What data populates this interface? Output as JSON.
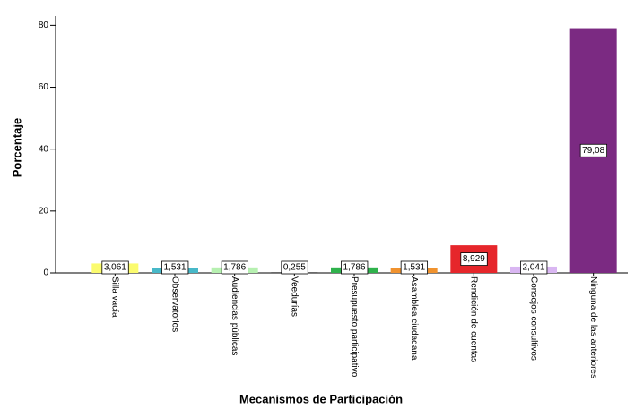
{
  "chart_data": {
    "type": "bar",
    "x_label": "Mecanismos de Participación",
    "y_label": "Porcentaje",
    "categories": [
      "Silla vacía",
      "Observatorios",
      "Audiencias públicas",
      "Veedurías",
      "Presupuesto participativo",
      "Asamblea ciudadana",
      "Rendición de cuentas",
      "Consejos consultivos",
      "Ninguna de las anteriores"
    ],
    "values": [
      3.061,
      1.531,
      1.786,
      0.255,
      1.786,
      1.531,
      8.929,
      2.041,
      79.08
    ],
    "value_labels": [
      "3,061",
      "1,531",
      "1,786",
      "0,255",
      "1,786",
      "1,531",
      "8,929",
      "2,041",
      "79,08"
    ],
    "colors": [
      "#fbfb6e",
      "#47b8c8",
      "#b6f0b0",
      "#555555",
      "#2fb24c",
      "#f0922e",
      "#e6262b",
      "#d9b6f2",
      "#7b2a82"
    ],
    "ylim": [
      0,
      83
    ],
    "yticks": [
      0,
      20,
      40,
      60,
      80
    ]
  }
}
